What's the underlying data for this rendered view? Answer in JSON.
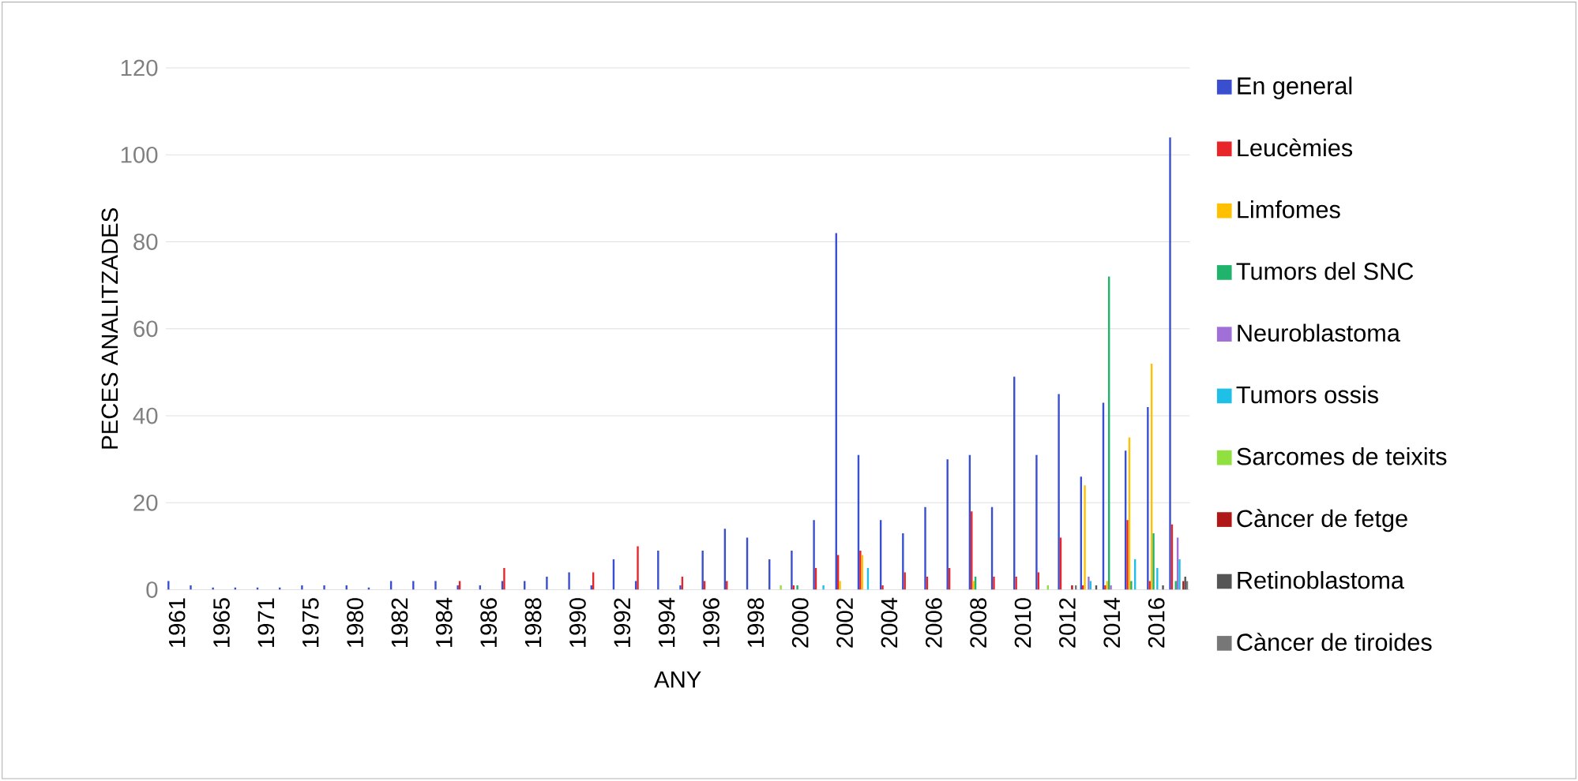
{
  "chart_data": {
    "type": "bar",
    "xlabel": "ANY",
    "ylabel": "PECES ANALITZADES",
    "categories": [
      "1961",
      null,
      "1965",
      null,
      "1971",
      null,
      "1975",
      null,
      "1980",
      null,
      "1982",
      null,
      "1984",
      null,
      "1986",
      null,
      "1988",
      null,
      "1990",
      null,
      "1992",
      null,
      "1994",
      null,
      "1996",
      null,
      "1998",
      null,
      "2000",
      null,
      "2002",
      null,
      "2004",
      null,
      "2006",
      null,
      "2008",
      null,
      "2010",
      null,
      "2012",
      null,
      "2014",
      null,
      "2016",
      null
    ],
    "series": [
      {
        "name": "En general",
        "color": "#3a4fd0",
        "values": [
          2,
          1,
          0.5,
          0.5,
          0.5,
          0.5,
          1,
          1,
          1,
          0.5,
          2,
          2,
          2,
          1,
          1,
          2,
          2,
          3,
          4,
          1,
          7,
          2,
          9,
          1,
          9,
          14,
          12,
          7,
          9,
          16,
          82,
          31,
          16,
          13,
          19,
          30,
          31,
          19,
          49,
          31,
          45,
          26,
          43,
          32,
          42,
          104
        ]
      },
      {
        "name": "Leucèmies",
        "color": "#e8262a",
        "values": [
          0,
          0,
          0,
          0,
          0,
          0,
          0,
          0,
          0,
          0,
          0,
          0,
          0,
          2,
          0,
          5,
          0,
          0,
          0,
          4,
          0,
          10,
          0,
          3,
          2,
          2,
          0,
          0,
          1,
          5,
          8,
          9,
          1,
          4,
          3,
          5,
          18,
          3,
          3,
          4,
          12,
          1,
          1,
          16,
          2,
          15
        ]
      },
      {
        "name": "Limfomes",
        "color": "#ffc000",
        "values": [
          0,
          0,
          0,
          0,
          0,
          0,
          0,
          0,
          0,
          0,
          0,
          0,
          0,
          0,
          0,
          0,
          0,
          0,
          0,
          0,
          0,
          0,
          0,
          0,
          0,
          0,
          0,
          0,
          0,
          0,
          2,
          8,
          0,
          0,
          0,
          0,
          2,
          0,
          0,
          0,
          0,
          24,
          2,
          35,
          52,
          0
        ]
      },
      {
        "name": "Tumors del SNC",
        "color": "#1fb36b",
        "values": [
          0,
          0,
          0,
          0,
          0,
          0,
          0,
          0,
          0,
          0,
          0,
          0,
          0,
          0,
          0,
          0,
          0,
          0,
          0,
          0,
          0,
          0,
          0,
          0,
          0,
          0,
          0,
          0,
          1,
          0,
          0,
          0,
          0,
          0,
          0,
          0,
          3,
          0,
          0,
          0,
          0,
          0,
          72,
          2,
          13,
          2
        ]
      },
      {
        "name": "Neuroblastoma",
        "color": "#a070d8",
        "values": [
          0,
          0,
          0,
          0,
          0,
          0,
          0,
          0,
          0,
          0,
          0,
          0,
          0,
          0,
          0,
          0,
          0,
          0,
          0,
          0,
          0,
          0,
          0,
          0,
          0,
          0,
          0,
          0,
          0,
          0,
          0,
          0,
          0,
          0,
          0,
          0,
          0,
          0,
          0,
          0,
          0,
          3,
          1,
          0,
          0,
          12
        ]
      },
      {
        "name": "Tumors ossis",
        "color": "#1ec0e8",
        "values": [
          0,
          0,
          0,
          0,
          0,
          0,
          0,
          0,
          0,
          0,
          0,
          0,
          0,
          0,
          0,
          0,
          0,
          0,
          0,
          0,
          0,
          0,
          0,
          0,
          0,
          0,
          0,
          0,
          0,
          1,
          0,
          5,
          0,
          0,
          0,
          0,
          0,
          0,
          0,
          0,
          0,
          2,
          0,
          7,
          5,
          7
        ]
      },
      {
        "name": "Sarcomes de teixits",
        "color": "#90e040",
        "values": [
          0,
          0,
          0,
          0,
          0,
          0,
          0,
          0,
          0,
          0,
          0,
          0,
          0,
          0,
          0,
          0,
          0,
          0,
          0,
          0,
          0,
          0,
          0,
          0,
          0,
          0,
          0,
          1,
          0,
          0,
          0,
          0,
          0,
          0,
          0,
          0,
          0,
          0,
          0,
          1,
          0,
          0,
          0,
          0,
          0,
          0
        ]
      },
      {
        "name": "Càncer de fetge",
        "color": "#b01818",
        "values": [
          0,
          0,
          0,
          0,
          0,
          0,
          0,
          0,
          0,
          0,
          0,
          0,
          0,
          0,
          0,
          0,
          0,
          0,
          0,
          0,
          0,
          0,
          0,
          0,
          0,
          0,
          0,
          0,
          0,
          0,
          0,
          0,
          0,
          0,
          0,
          0,
          0,
          0,
          0,
          0,
          1,
          0,
          0,
          0,
          0,
          2
        ]
      },
      {
        "name": "Retinoblastoma",
        "color": "#555555",
        "values": [
          0,
          0,
          0,
          0,
          0,
          0,
          0,
          0,
          0,
          0,
          0,
          0,
          0,
          0,
          0,
          0,
          0,
          0,
          0,
          0,
          0,
          0,
          0,
          0,
          0,
          0,
          0,
          0,
          0,
          0,
          0,
          0,
          0,
          0,
          0,
          0,
          0,
          0,
          0,
          0,
          0,
          1,
          0,
          0,
          1,
          3
        ]
      },
      {
        "name": "Càncer de tiroides",
        "color": "#777777",
        "values": [
          0,
          0,
          0,
          0,
          0,
          0,
          0,
          0,
          0,
          0,
          0,
          0,
          0,
          0,
          0,
          0,
          0,
          0,
          0,
          0,
          0,
          0,
          0,
          0,
          0,
          0,
          0,
          0,
          0,
          0,
          0,
          0,
          0,
          0,
          0,
          0,
          0,
          0,
          0,
          0,
          1,
          0,
          0,
          0,
          0,
          2
        ]
      }
    ],
    "ylim": [
      0,
      120
    ],
    "yticks": [
      0,
      20,
      40,
      60,
      80,
      100,
      120
    ],
    "grid": "y",
    "legend": "right"
  }
}
